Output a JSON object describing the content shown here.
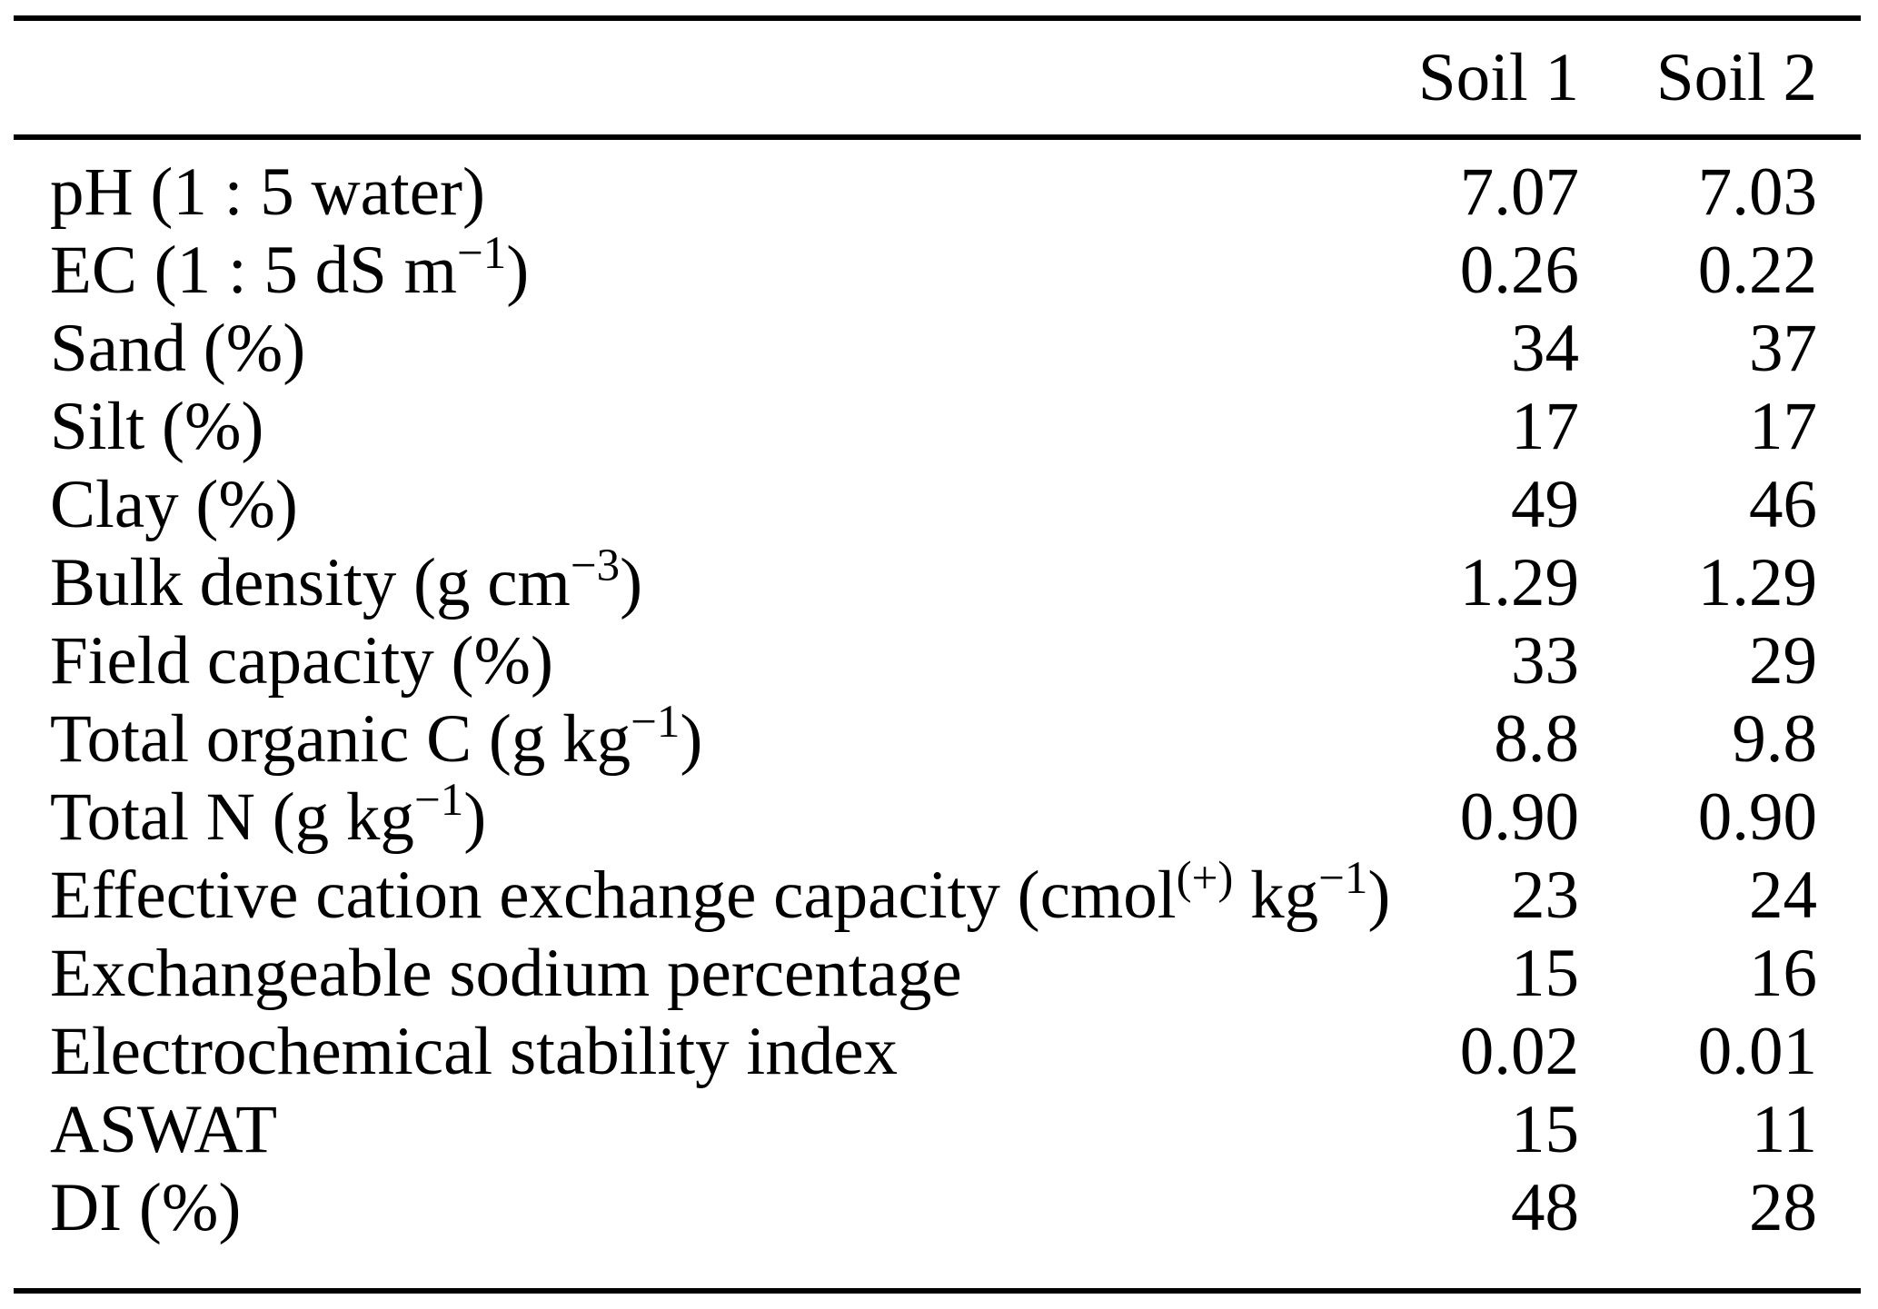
{
  "page": {
    "background_color": "#ffffff",
    "text_color": "#000000",
    "rule_color": "#000000"
  },
  "table": {
    "columns": [
      "",
      "Soil 1",
      "Soil 2"
    ],
    "rows": [
      {
        "label": [
          {
            "t": "pH (1 : 5 water)"
          }
        ],
        "soil1": "7.07",
        "soil2": "7.03"
      },
      {
        "label": [
          {
            "t": "EC (1 : 5 dS m"
          },
          {
            "t": "−1",
            "sup": true
          },
          {
            "t": ")"
          }
        ],
        "soil1": "0.26",
        "soil2": "0.22"
      },
      {
        "label": [
          {
            "t": "Sand (%)"
          }
        ],
        "soil1": "34",
        "soil2": "37"
      },
      {
        "label": [
          {
            "t": "Silt (%)"
          }
        ],
        "soil1": "17",
        "soil2": "17"
      },
      {
        "label": [
          {
            "t": "Clay (%)"
          }
        ],
        "soil1": "49",
        "soil2": "46"
      },
      {
        "label": [
          {
            "t": "Bulk density (g cm"
          },
          {
            "t": "−3",
            "sup": true
          },
          {
            "t": ")"
          }
        ],
        "soil1": "1.29",
        "soil2": "1.29"
      },
      {
        "label": [
          {
            "t": "Field capacity (%)"
          }
        ],
        "soil1": "33",
        "soil2": "29"
      },
      {
        "label": [
          {
            "t": "Total organic C (g kg"
          },
          {
            "t": "−1",
            "sup": true
          },
          {
            "t": ")"
          }
        ],
        "soil1": "8.8",
        "soil2": "9.8"
      },
      {
        "label": [
          {
            "t": "Total N (g kg"
          },
          {
            "t": "−1",
            "sup": true
          },
          {
            "t": ")"
          }
        ],
        "soil1": "0.90",
        "soil2": "0.90"
      },
      {
        "label": [
          {
            "t": "Effective cation exchange capacity (cmol"
          },
          {
            "t": "(+)",
            "sup": true
          },
          {
            "t": " kg"
          },
          {
            "t": "−1",
            "sup": true
          },
          {
            "t": ")"
          }
        ],
        "soil1": "23",
        "soil2": "24"
      },
      {
        "label": [
          {
            "t": "Exchangeable sodium percentage"
          }
        ],
        "soil1": "15",
        "soil2": "16"
      },
      {
        "label": [
          {
            "t": "Electrochemical stability index"
          }
        ],
        "soil1": "0.02",
        "soil2": "0.01"
      },
      {
        "label": [
          {
            "t": "ASWAT"
          }
        ],
        "soil1": "15",
        "soil2": "11"
      },
      {
        "label": [
          {
            "t": "DI (%)"
          }
        ],
        "soil1": "48",
        "soil2": "28"
      }
    ]
  }
}
